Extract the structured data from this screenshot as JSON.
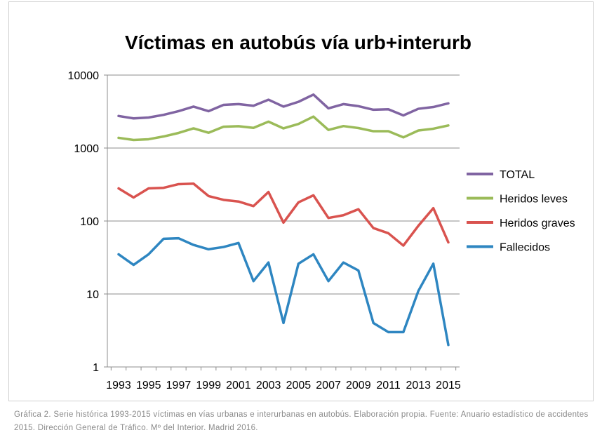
{
  "chart_data": {
    "type": "line",
    "title": "Víctimas en autobús vía urb+interurb",
    "xlabel": "",
    "ylabel": "",
    "y_scale": "log",
    "ylim": [
      1,
      10000
    ],
    "y_ticks": [
      "1",
      "10",
      "100",
      "1000",
      "10000"
    ],
    "x_ticks": [
      "1993",
      "1995",
      "1997",
      "1999",
      "2001",
      "2003",
      "2005",
      "2007",
      "2009",
      "2011",
      "2013",
      "2015"
    ],
    "grid": true,
    "legend_position": "right",
    "x": [
      1993,
      1994,
      1995,
      1996,
      1997,
      1998,
      1999,
      2000,
      2001,
      2002,
      2003,
      2004,
      2005,
      2006,
      2007,
      2008,
      2009,
      2010,
      2011,
      2012,
      2013,
      2014,
      2015
    ],
    "series": [
      {
        "name": "TOTAL",
        "color": "#8064a2",
        "values": [
          2750,
          2550,
          2620,
          2850,
          3200,
          3700,
          3200,
          3900,
          4000,
          3800,
          4600,
          3700,
          4300,
          5400,
          3500,
          4000,
          3750,
          3350,
          3400,
          2800,
          3450,
          3650,
          4100
        ]
      },
      {
        "name": "Heridos leves",
        "color": "#9bbb59",
        "values": [
          1380,
          1290,
          1320,
          1440,
          1610,
          1860,
          1620,
          1960,
          1990,
          1890,
          2300,
          1860,
          2140,
          2700,
          1770,
          2000,
          1880,
          1700,
          1700,
          1400,
          1740,
          1840,
          2040
        ]
      },
      {
        "name": "Heridos graves",
        "color": "#d9534f",
        "values": [
          280,
          210,
          280,
          285,
          320,
          325,
          220,
          195,
          185,
          160,
          250,
          95,
          180,
          225,
          110,
          120,
          145,
          80,
          68,
          46,
          86,
          150,
          51
        ]
      },
      {
        "name": "Fallecidos",
        "color": "#2e86c1",
        "values": [
          35,
          25,
          35,
          57,
          58,
          47,
          41,
          44,
          50,
          15,
          27,
          4,
          26,
          35,
          15,
          27,
          21,
          4,
          3,
          3,
          11,
          26,
          2
        ]
      }
    ]
  },
  "caption": {
    "text": "Gráfica 2. Serie histórica 1993-2015 víctimas en vías urbanas e interurbanas en autobús. Elaboración propia. Fuente: Anuario estadístico de accidentes 2015. Dirección General de Tráfico. Mº del Interior. Madrid 2016."
  }
}
